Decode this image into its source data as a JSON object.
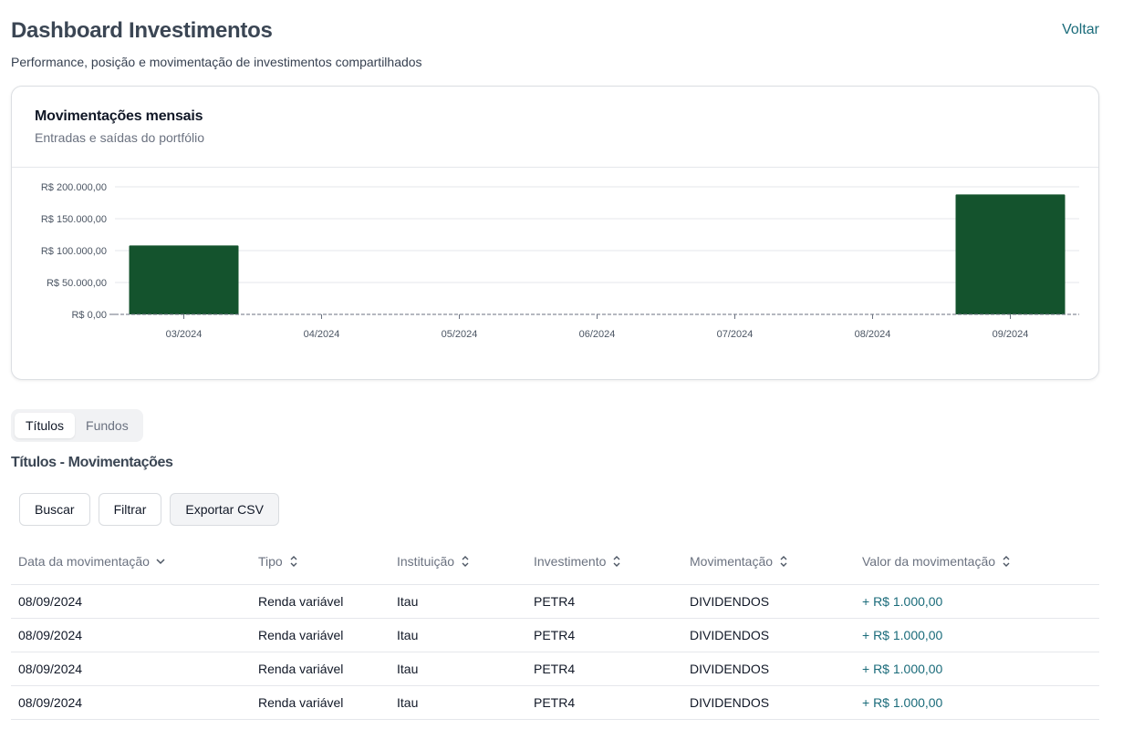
{
  "header": {
    "title": "Dashboard Investimentos",
    "subtitle": "Performance, posição e movimentação de investimentos compartilhados",
    "back_label": "Voltar"
  },
  "chart_card": {
    "title": "Movimentações mensais",
    "subtitle": "Entradas e saídas do portfólio"
  },
  "chart_data": {
    "type": "bar",
    "categories": [
      "03/2024",
      "04/2024",
      "05/2024",
      "06/2024",
      "07/2024",
      "08/2024",
      "09/2024"
    ],
    "values": [
      108000,
      0,
      0,
      0,
      0,
      0,
      188000
    ],
    "y_tick_values": [
      0,
      50000,
      100000,
      150000,
      200000
    ],
    "y_tick_labels": [
      "R$ 0,00",
      "R$ 50.000,00",
      "R$ 100.000,00",
      "R$ 150.000,00",
      "R$ 200.000,00"
    ],
    "ylim": [
      0,
      200000
    ],
    "bar_color": "#14532d",
    "grid": true,
    "title": "",
    "xlabel": "",
    "ylabel": ""
  },
  "tabs": [
    {
      "label": "Títulos",
      "active": true
    },
    {
      "label": "Fundos",
      "active": false
    }
  ],
  "section_title": "Títulos - Movimentações",
  "actions": {
    "search_label": "Buscar",
    "filter_label": "Filtrar",
    "export_label": "Exportar CSV"
  },
  "table": {
    "columns": [
      {
        "label": "Data da movimentação",
        "sort_icon": "chevron-down-icon"
      },
      {
        "label": "Tipo",
        "sort_icon": "sort-icon"
      },
      {
        "label": "Instituição",
        "sort_icon": "sort-icon"
      },
      {
        "label": "Investimento",
        "sort_icon": "sort-icon"
      },
      {
        "label": "Movimentação",
        "sort_icon": "sort-icon"
      },
      {
        "label": "Valor da movimentação",
        "sort_icon": "sort-icon"
      }
    ],
    "rows": [
      [
        "08/09/2024",
        "Renda variável",
        "Itau",
        "PETR4",
        "DIVIDENDOS",
        "+ R$ 1.000,00"
      ],
      [
        "08/09/2024",
        "Renda variável",
        "Itau",
        "PETR4",
        "DIVIDENDOS",
        "+ R$ 1.000,00"
      ],
      [
        "08/09/2024",
        "Renda variável",
        "Itau",
        "PETR4",
        "DIVIDENDOS",
        "+ R$ 1.000,00"
      ],
      [
        "08/09/2024",
        "Renda variável",
        "Itau",
        "PETR4",
        "DIVIDENDOS",
        "+ R$ 1.000,00"
      ]
    ]
  },
  "colors": {
    "accent": "#1a6b7a",
    "bar": "#14532d"
  }
}
